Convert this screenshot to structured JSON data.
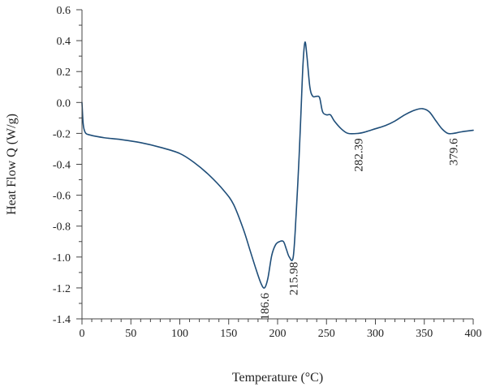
{
  "chart_data": {
    "type": "line",
    "xlabel": "Temperature (°C)",
    "ylabel": "Heat Flow Q (W/g)",
    "xlim": [
      0,
      400
    ],
    "ylim": [
      -1.4,
      0.6
    ],
    "x_ticks": [
      0,
      50,
      100,
      150,
      200,
      250,
      300,
      350,
      400
    ],
    "x_tick_labels": [
      "0",
      "50",
      "100",
      "150",
      "200",
      "250",
      "300",
      "350",
      "400"
    ],
    "y_ticks": [
      -1.4,
      -1.2,
      -1.0,
      -0.8,
      -0.6,
      -0.4,
      -0.2,
      0.0,
      0.2,
      0.4,
      0.6
    ],
    "y_tick_labels": [
      "-1.4",
      "-1.2",
      "-1.0",
      "-0.8",
      "-0.6",
      "-0.4",
      "-0.2",
      "0.0",
      "0.2",
      "0.4",
      "0.6"
    ],
    "grid": false,
    "line_color": "#1f4e79",
    "series": [
      {
        "x": [
          0,
          1,
          2,
          4,
          8,
          15,
          25,
          40,
          60,
          80,
          100,
          115,
          130,
          145,
          155,
          165,
          172,
          178,
          183,
          186.6,
          190,
          194,
          198,
          202,
          206,
          209,
          212,
          215.98,
          219,
          222,
          224,
          226,
          228,
          230,
          233,
          236,
          240,
          243,
          246,
          250,
          254,
          258,
          265,
          272,
          282.39,
          290,
          300,
          310,
          320,
          330,
          340,
          348,
          355,
          362,
          368,
          374,
          379.6,
          388,
          400
        ],
        "y": [
          0.0,
          -0.12,
          -0.17,
          -0.2,
          -0.21,
          -0.22,
          -0.23,
          -0.24,
          -0.26,
          -0.29,
          -0.33,
          -0.39,
          -0.47,
          -0.57,
          -0.66,
          -0.82,
          -0.96,
          -1.08,
          -1.17,
          -1.2,
          -1.14,
          -0.99,
          -0.92,
          -0.9,
          -0.9,
          -0.95,
          -1.0,
          -1.0,
          -0.72,
          -0.35,
          -0.05,
          0.25,
          0.39,
          0.3,
          0.1,
          0.04,
          0.04,
          0.03,
          -0.06,
          -0.08,
          -0.08,
          -0.12,
          -0.17,
          -0.2,
          -0.2,
          -0.19,
          -0.17,
          -0.15,
          -0.12,
          -0.08,
          -0.05,
          -0.04,
          -0.06,
          -0.12,
          -0.17,
          -0.2,
          -0.2,
          -0.19,
          -0.18
        ]
      }
    ],
    "annotations": [
      {
        "text": "186.6",
        "x": 186.6,
        "y": -1.2
      },
      {
        "text": "215.98",
        "x": 215.98,
        "y": -1.0
      },
      {
        "text": "282.39",
        "x": 282.39,
        "y": -0.2
      },
      {
        "text": "379.6",
        "x": 379.6,
        "y": -0.2
      }
    ]
  }
}
